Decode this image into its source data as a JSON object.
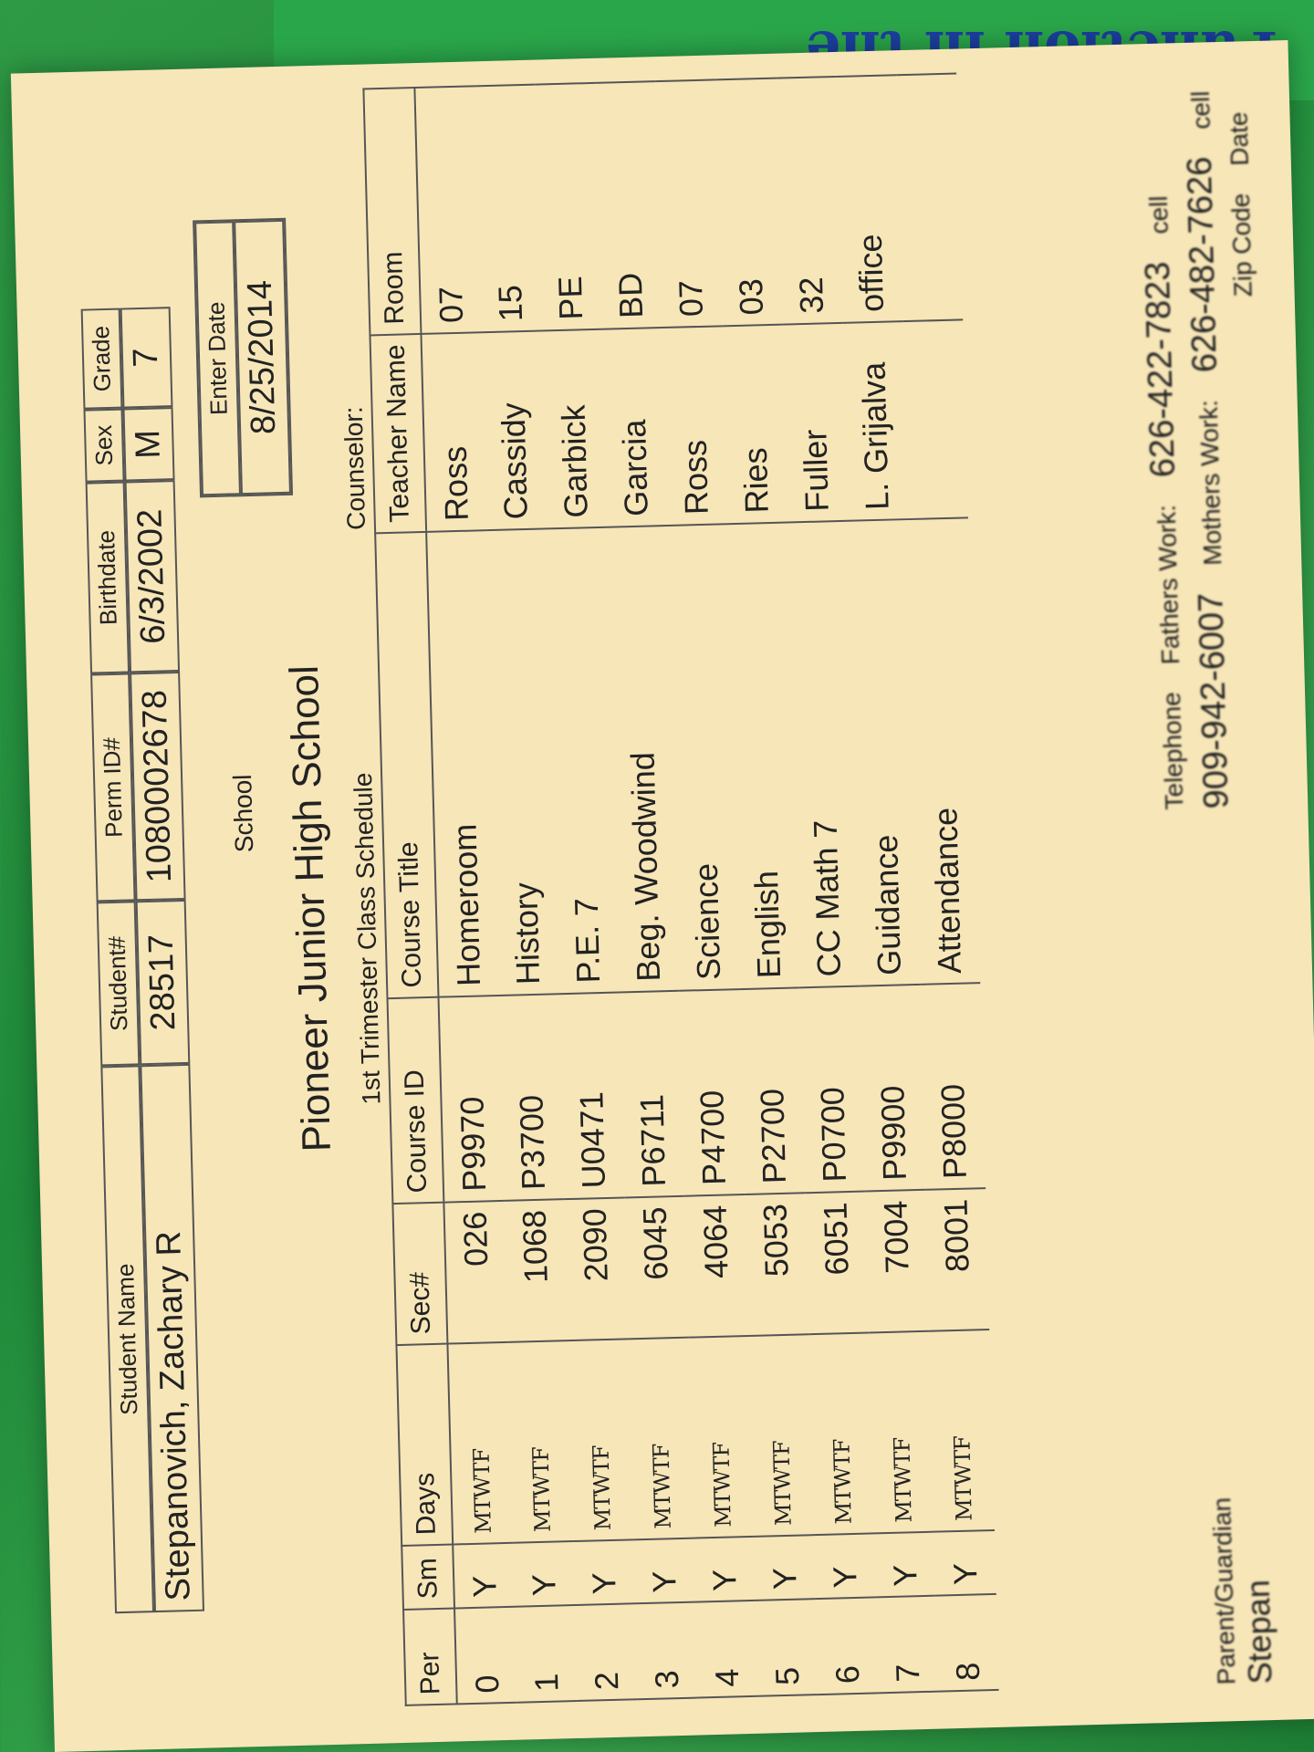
{
  "background_text": "Function in the",
  "student": {
    "labels": {
      "name": "Student Name",
      "student_no": "Student#",
      "perm_id": "Perm ID#",
      "birthdate": "Birthdate",
      "sex": "Sex",
      "grade": "Grade"
    },
    "name": "Stepanovich, Zachary R",
    "student_no": "28517",
    "perm_id": "1080002678",
    "birthdate": "6/3/2002",
    "sex": "M",
    "grade": "7"
  },
  "school": {
    "label": "School",
    "name": "Pioneer Junior High School",
    "enter_date_label": "Enter Date",
    "enter_date": "8/25/2014"
  },
  "schedule": {
    "title": "1st Trimester Class Schedule",
    "counselor_label": "Counselor:",
    "columns": [
      "Per",
      "Sm",
      "Days",
      "Sec#",
      "Course ID",
      "Course Title",
      "Teacher Name",
      "Room"
    ],
    "rows": [
      [
        "0",
        "Y",
        "MTWTF",
        "026",
        "P9970",
        "Homeroom",
        "Ross",
        "07"
      ],
      [
        "1",
        "Y",
        "MTWTF",
        "1068",
        "P3700",
        "History",
        "Cassidy",
        "15"
      ],
      [
        "2",
        "Y",
        "MTWTF",
        "2090",
        "U0471",
        "P.E. 7",
        "Garbick",
        "PE"
      ],
      [
        "3",
        "Y",
        "MTWTF",
        "6045",
        "P6711",
        "Beg. Woodwind",
        "Garcia",
        "BD"
      ],
      [
        "4",
        "Y",
        "MTWTF",
        "4064",
        "P4700",
        "Science",
        "Ross",
        "07"
      ],
      [
        "5",
        "Y",
        "MTWTF",
        "5053",
        "P2700",
        "English",
        "Ries",
        "03"
      ],
      [
        "6",
        "Y",
        "MTWTF",
        "6051",
        "P0700",
        "CC Math 7",
        "Fuller",
        "32"
      ],
      [
        "7",
        "Y",
        "MTWTF",
        "7004",
        "P9900",
        "Guidance",
        "L. Grijalva",
        "office"
      ],
      [
        "8",
        "Y",
        "MTWTF",
        "8001",
        "P8000",
        "Attendance",
        "",
        ""
      ]
    ]
  },
  "footer": {
    "parent_label": "Parent/Guardian",
    "parent_name": "Stepan",
    "telephone_label": "Telephone",
    "telephone": "909-942-6007",
    "fathers_work_label": "Fathers Work:",
    "fathers_work": "626-422-7823",
    "mothers_work_label": "Mothers Work:",
    "mothers_work": "626-482-7626",
    "cell_label": "cell",
    "zip_label": "Zip Code",
    "date_label": "Date"
  }
}
